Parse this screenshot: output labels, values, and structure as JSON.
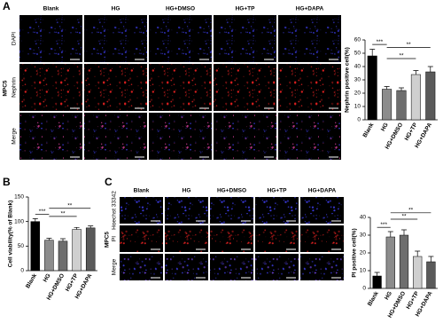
{
  "panel_labels": [
    "A",
    "B",
    "C"
  ],
  "micrographs": [
    {
      "columns": [
        "Blank",
        "HG",
        "HG+DMSO",
        "HG+TP",
        "HG+DAPA"
      ],
      "rows": [
        {
          "label": "DAPI",
          "color": "#3a3ae0"
        },
        {
          "label": "Nephrin",
          "color": "#e02020"
        },
        {
          "label": "Merge",
          "color": "#e040a0"
        }
      ],
      "cell_line": "MPC5",
      "scale_bar": "50 μm"
    },
    {
      "columns": [
        "Blank",
        "HG",
        "HG+DMSO",
        "HG+TP",
        "HG+DAPA"
      ],
      "rows": [
        {
          "label": "Hoechst 33342",
          "color": "#3a3ae0"
        },
        {
          "label": "PI",
          "color": "#e02020"
        },
        {
          "label": "Merge",
          "color": "#6a40d0"
        }
      ],
      "cell_line": "MPC5",
      "scale_bar": "50 μm"
    }
  ],
  "chart_data": [
    {
      "type": "bar",
      "ylabel": "Nephrin positive cell(%)",
      "categories": [
        "Blank",
        "HG",
        "HG+DMSO",
        "HG+TP",
        "HG+DAPA"
      ],
      "values": [
        48,
        23,
        22,
        34,
        36
      ],
      "errors": [
        5,
        2,
        2,
        3,
        4
      ],
      "colors": [
        "#000000",
        "#8c8c8c",
        "#6e6e6e",
        "#cfcfcf",
        "#5a5a5a"
      ],
      "ylim": [
        0,
        60
      ],
      "yticks": [
        0,
        10,
        20,
        30,
        40,
        50,
        60
      ],
      "annotations": [
        {
          "text": "***",
          "pair": [
            "Blank",
            "HG"
          ]
        },
        {
          "text": "**",
          "pair": [
            "HG",
            "HG+TP"
          ]
        },
        {
          "text": "**",
          "pair": [
            "HG",
            "HG+DAPA"
          ]
        }
      ]
    },
    {
      "type": "bar",
      "ylabel": "Cell viability(% of Blank)",
      "categories": [
        "Blank",
        "HG",
        "HG+DMSO",
        "HG+TP",
        "HG+DAPA"
      ],
      "values": [
        100,
        62,
        60,
        84,
        87
      ],
      "errors": [
        6,
        4,
        5,
        4,
        4
      ],
      "colors": [
        "#000000",
        "#8c8c8c",
        "#6e6e6e",
        "#cfcfcf",
        "#5a5a5a"
      ],
      "ylim": [
        0,
        150
      ],
      "yticks": [
        0,
        50,
        100,
        150
      ],
      "annotations": [
        {
          "text": "***",
          "pair": [
            "Blank",
            "HG"
          ]
        },
        {
          "text": "**",
          "pair": [
            "HG",
            "HG+TP"
          ]
        },
        {
          "text": "**",
          "pair": [
            "HG",
            "HG+DAPA"
          ]
        }
      ]
    },
    {
      "type": "bar",
      "ylabel": "PI positive cell(%)",
      "categories": [
        "Blank",
        "HG",
        "HG+DMSO",
        "HG+TP",
        "HG+DAPA"
      ],
      "values": [
        7,
        29,
        30,
        18,
        15
      ],
      "errors": [
        2,
        3,
        3,
        3,
        3
      ],
      "colors": [
        "#000000",
        "#8c8c8c",
        "#6e6e6e",
        "#cfcfcf",
        "#5a5a5a"
      ],
      "ylim": [
        0,
        40
      ],
      "yticks": [
        0,
        10,
        20,
        30,
        40
      ],
      "annotations": [
        {
          "text": "***",
          "pair": [
            "Blank",
            "HG"
          ]
        },
        {
          "text": "**",
          "pair": [
            "HG",
            "HG+TP"
          ]
        },
        {
          "text": "**",
          "pair": [
            "HG",
            "HG+DAPA"
          ]
        }
      ]
    }
  ]
}
